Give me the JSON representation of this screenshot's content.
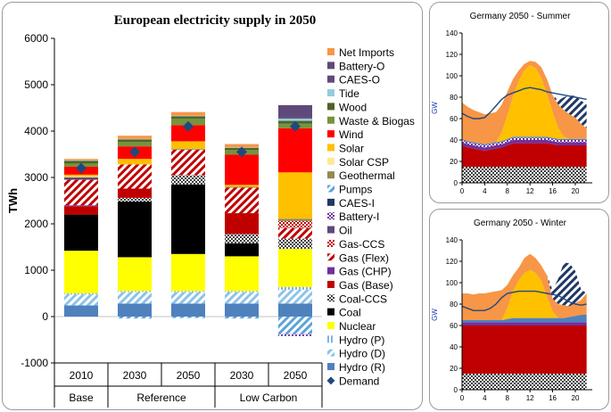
{
  "colors": {
    "Hydro (R)": "#4F81BD",
    "Hydro (D)": "#8EC3E8",
    "Hydro (P)": "#7FB2E0",
    "Nuclear": "#FFFF00",
    "Coal": "#000000",
    "Coal-CCS": "#404040",
    "Gas (Base)": "#C00000",
    "Gas (CHP)": "#7030A0",
    "Gas (Flex)": "#C00000",
    "Gas-CCS": "#C00000",
    "Oil": "#5F497A",
    "Battery-I": "#7030A0",
    "CAES-I": "#1F3864",
    "Pumps": "#5BA3D9",
    "Geothermal": "#938953",
    "Solar CSP": "#FFE699",
    "Solar": "#FFC000",
    "Wind": "#FF0000",
    "Waste & Biogas": "#77933C",
    "Wood": "#4F6228",
    "Tide": "#93CDDD",
    "CAES-O": "#604A7B",
    "Battery-O": "#5F497A",
    "Net Imports": "#F79646",
    "Demand": "#1F497D"
  },
  "chart_data": [
    {
      "type": "bar",
      "stacked": true,
      "title": "European electricity supply in 2050",
      "ylabel": "TWh",
      "ylim": [
        -1000,
        6000
      ],
      "yticks": [
        -1000,
        0,
        1000,
        2000,
        3000,
        4000,
        5000,
        6000
      ],
      "grid": false,
      "legend_position": "right",
      "categories": [
        "2010",
        "2030",
        "2050",
        "2030",
        "2050"
      ],
      "groups": [
        {
          "label": "Base",
          "span": 1
        },
        {
          "label": "Reference",
          "span": 2
        },
        {
          "label": "Low Carbon",
          "span": 2
        }
      ],
      "legend_order": [
        "Net Imports",
        "Battery-O",
        "CAES-O",
        "Tide",
        "Wood",
        "Waste & Biogas",
        "Wind",
        "Solar",
        "Solar CSP",
        "Geothermal",
        "Pumps",
        "CAES-I",
        "Battery-I",
        "Oil",
        "Gas-CCS",
        "Gas (Flex)",
        "Gas (CHP)",
        "Gas (Base)",
        "Coal-CCS",
        "Coal",
        "Nuclear",
        "Hydro (P)",
        "Hydro (D)",
        "Hydro (R)",
        "Demand"
      ],
      "series": [
        {
          "name": "Pumps",
          "pattern": "hatch",
          "values": [
            0,
            -40,
            -30,
            -40,
            -380
          ]
        },
        {
          "name": "Battery-I",
          "pattern": "cross",
          "values": [
            0,
            0,
            0,
            0,
            -40
          ]
        },
        {
          "name": "Hydro (R)",
          "values": [
            240,
            280,
            280,
            280,
            280
          ]
        },
        {
          "name": "Hydro (D)",
          "pattern": "hatch",
          "values": [
            240,
            250,
            250,
            250,
            300
          ]
        },
        {
          "name": "Hydro (P)",
          "pattern": "vlines",
          "values": [
            20,
            20,
            20,
            20,
            60
          ]
        },
        {
          "name": "Nuclear",
          "values": [
            920,
            730,
            800,
            750,
            820
          ]
        },
        {
          "name": "Coal",
          "values": [
            780,
            1200,
            1500,
            280,
            0
          ]
        },
        {
          "name": "Coal-CCS",
          "pattern": "cross",
          "values": [
            0,
            80,
            200,
            200,
            220
          ]
        },
        {
          "name": "Gas (Base)",
          "values": [
            180,
            200,
            0,
            450,
            0
          ]
        },
        {
          "name": "Gas (CHP)",
          "values": [
            20,
            0,
            0,
            0,
            0
          ]
        },
        {
          "name": "Gas (Flex)",
          "pattern": "hatch",
          "values": [
            550,
            520,
            550,
            550,
            230
          ]
        },
        {
          "name": "Gas-CCS",
          "pattern": "cross",
          "values": [
            0,
            0,
            0,
            0,
            150
          ]
        },
        {
          "name": "Oil",
          "values": [
            50,
            0,
            0,
            0,
            0
          ]
        },
        {
          "name": "Geothermal",
          "values": [
            0,
            0,
            20,
            20,
            50
          ]
        },
        {
          "name": "Solar CSP",
          "values": [
            20,
            0,
            0,
            0,
            0
          ]
        },
        {
          "name": "Solar",
          "values": [
            40,
            120,
            160,
            40,
            1000
          ]
        },
        {
          "name": "Wind",
          "values": [
            170,
            270,
            350,
            650,
            950
          ]
        },
        {
          "name": "Waste & Biogas",
          "values": [
            70,
            100,
            140,
            100,
            100
          ]
        },
        {
          "name": "Wood",
          "values": [
            60,
            50,
            50,
            50,
            60
          ]
        },
        {
          "name": "Tide",
          "values": [
            10,
            10,
            10,
            10,
            50
          ]
        },
        {
          "name": "CAES-O",
          "values": [
            0,
            0,
            0,
            0,
            20
          ]
        },
        {
          "name": "Battery-O",
          "values": [
            0,
            0,
            0,
            0,
            270
          ]
        },
        {
          "name": "Net Imports",
          "values": [
            30,
            70,
            80,
            70,
            0
          ]
        }
      ],
      "demand": [
        3200,
        3550,
        4100,
        3550,
        4100
      ]
    },
    {
      "type": "area",
      "stacked": true,
      "title": "Germany 2050 - Summer",
      "ylabel": "GW",
      "ylim": [
        0,
        140
      ],
      "yticks": [
        0,
        20,
        40,
        60,
        80,
        100,
        120,
        140
      ],
      "xticks": [
        0,
        4,
        8,
        12,
        16,
        20
      ],
      "x": [
        0,
        1,
        2,
        3,
        4,
        5,
        6,
        7,
        8,
        9,
        10,
        11,
        12,
        13,
        14,
        15,
        16,
        17,
        18,
        19,
        20,
        21,
        22
      ],
      "series": [
        {
          "name": "Coal-CCS",
          "pattern": "cross",
          "values": [
            15,
            15,
            15,
            15,
            15,
            15,
            15,
            15,
            15,
            15,
            15,
            15,
            15,
            15,
            15,
            15,
            15,
            15,
            15,
            15,
            15,
            15,
            15
          ]
        },
        {
          "name": "Gas (Flex)",
          "values": [
            20,
            18,
            17,
            16,
            15,
            16,
            17,
            18,
            20,
            22,
            22,
            22,
            22,
            22,
            22,
            22,
            21,
            20,
            20,
            20,
            20,
            20,
            20
          ]
        },
        {
          "name": "Gas (CHP)",
          "values": [
            3,
            3,
            3,
            3,
            3,
            3,
            3,
            3,
            3,
            3,
            3,
            3,
            3,
            3,
            3,
            3,
            3,
            3,
            3,
            3,
            3,
            3,
            3
          ]
        },
        {
          "name": "Battery-I",
          "pattern": "cross",
          "values": [
            2,
            2,
            2,
            2,
            2,
            2,
            2,
            2,
            2,
            2,
            2,
            2,
            2,
            2,
            2,
            2,
            2,
            2,
            2,
            2,
            2,
            2,
            2
          ]
        },
        {
          "name": "Hydro (R)",
          "values": [
            1,
            1,
            1,
            1,
            1,
            1,
            1,
            1,
            1,
            1,
            1,
            1,
            1,
            1,
            1,
            1,
            1,
            1,
            1,
            1,
            1,
            1,
            1
          ]
        },
        {
          "name": "Solar",
          "values": [
            0,
            0,
            0,
            0,
            0,
            0,
            0,
            8,
            22,
            38,
            52,
            62,
            67,
            64,
            55,
            40,
            24,
            10,
            2,
            0,
            0,
            0,
            0
          ]
        },
        {
          "name": "Net Imports",
          "values": [
            34,
            32,
            30,
            29,
            28,
            28,
            28,
            26,
            22,
            16,
            10,
            6,
            4,
            6,
            10,
            14,
            16,
            22,
            25,
            23,
            20,
            14,
            10
          ]
        },
        {
          "name": "CAES-I",
          "pattern": "hatch",
          "values": [
            0,
            0,
            0,
            0,
            0,
            0,
            0,
            0,
            0,
            0,
            0,
            0,
            0,
            0,
            0,
            0,
            0,
            4,
            12,
            18,
            20,
            22,
            22
          ]
        }
      ],
      "demand": [
        65,
        62,
        60,
        60,
        61,
        66,
        72,
        78,
        82,
        84,
        86,
        88,
        89,
        88,
        87,
        85,
        84,
        83,
        82,
        81,
        80,
        79,
        78
      ]
    },
    {
      "type": "area",
      "stacked": true,
      "title": "Germany 2050 - Winter",
      "ylabel": "GW",
      "ylim": [
        0,
        140
      ],
      "yticks": [
        0,
        20,
        40,
        60,
        80,
        100,
        120,
        140
      ],
      "xticks": [
        0,
        4,
        8,
        12,
        16,
        20
      ],
      "x": [
        0,
        1,
        2,
        3,
        4,
        5,
        6,
        7,
        8,
        9,
        10,
        11,
        12,
        13,
        14,
        15,
        16,
        17,
        18,
        19,
        20,
        21,
        22
      ],
      "series": [
        {
          "name": "Coal-CCS",
          "pattern": "cross",
          "values": [
            15,
            15,
            15,
            15,
            15,
            15,
            15,
            15,
            15,
            15,
            15,
            15,
            15,
            15,
            15,
            15,
            15,
            15,
            15,
            15,
            15,
            15,
            15
          ]
        },
        {
          "name": "Gas (Flex)",
          "values": [
            45,
            45,
            45,
            45,
            45,
            45,
            45,
            45,
            45,
            45,
            45,
            45,
            45,
            45,
            45,
            45,
            45,
            45,
            45,
            45,
            45,
            45,
            45
          ]
        },
        {
          "name": "Gas (CHP)",
          "values": [
            3,
            3,
            3,
            3,
            3,
            3,
            3,
            3,
            3,
            3,
            3,
            3,
            3,
            3,
            3,
            3,
            3,
            3,
            3,
            3,
            3,
            3,
            3
          ]
        },
        {
          "name": "Hydro (R)",
          "values": [
            2,
            2,
            2,
            2,
            2,
            2,
            2,
            2,
            3,
            4,
            4,
            4,
            4,
            4,
            4,
            4,
            4,
            4,
            4,
            5,
            6,
            7,
            7
          ]
        },
        {
          "name": "Solar",
          "values": [
            0,
            0,
            0,
            0,
            0,
            0,
            0,
            0,
            10,
            25,
            35,
            42,
            45,
            42,
            35,
            20,
            6,
            0,
            0,
            0,
            0,
            0,
            0
          ]
        },
        {
          "name": "Net Imports",
          "values": [
            25,
            25,
            24,
            25,
            25,
            26,
            27,
            28,
            22,
            15,
            12,
            14,
            15,
            14,
            14,
            20,
            12,
            13,
            12,
            10,
            12,
            14,
            20
          ]
        },
        {
          "name": "CAES-I",
          "pattern": "hatch",
          "values": [
            0,
            0,
            0,
            0,
            0,
            0,
            0,
            0,
            0,
            0,
            0,
            0,
            0,
            0,
            0,
            0,
            8,
            24,
            40,
            40,
            30,
            10,
            0
          ]
        }
      ],
      "demand": [
        78,
        76,
        74,
        74,
        74,
        76,
        80,
        86,
        90,
        91,
        92,
        92,
        92,
        92,
        91,
        90,
        89,
        88,
        85,
        82,
        80,
        79,
        80
      ]
    }
  ]
}
